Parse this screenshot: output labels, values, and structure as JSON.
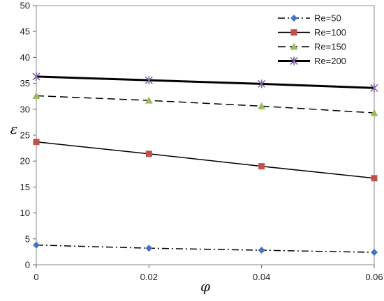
{
  "chart_data": {
    "type": "line",
    "xlabel": "φ",
    "ylabel": "ε",
    "x": [
      0,
      0.02,
      0.04,
      0.06
    ],
    "xlim": [
      0,
      0.06
    ],
    "ylim": [
      0,
      50
    ],
    "x_ticks": [
      "0",
      "0.02",
      "0.04",
      "0.06"
    ],
    "y_ticks": [
      "0",
      "5",
      "10",
      "15",
      "20",
      "25",
      "30",
      "35",
      "40",
      "45",
      "50"
    ],
    "legend_position": "top-right",
    "grid": false,
    "series": [
      {
        "name": "Re=50",
        "values": [
          3.8,
          3.2,
          2.8,
          2.4
        ],
        "color": "#4472C4",
        "marker": "diamond",
        "line_style": "dash-dot",
        "line_width": 1.5
      },
      {
        "name": "Re=100",
        "values": [
          23.7,
          21.4,
          19.0,
          16.7
        ],
        "color": "#C0504D",
        "marker": "square",
        "line_style": "solid",
        "line_width": 1.5
      },
      {
        "name": "Re=150",
        "values": [
          32.6,
          31.7,
          30.6,
          29.3
        ],
        "color": "#9BBB59",
        "marker": "triangle",
        "line_style": "dashed",
        "line_width": 1.5
      },
      {
        "name": "Re=200",
        "values": [
          36.3,
          35.6,
          34.9,
          34.1
        ],
        "color": "#8064A2",
        "marker": "x-star",
        "line_style": "solid",
        "line_width": 3
      }
    ]
  }
}
